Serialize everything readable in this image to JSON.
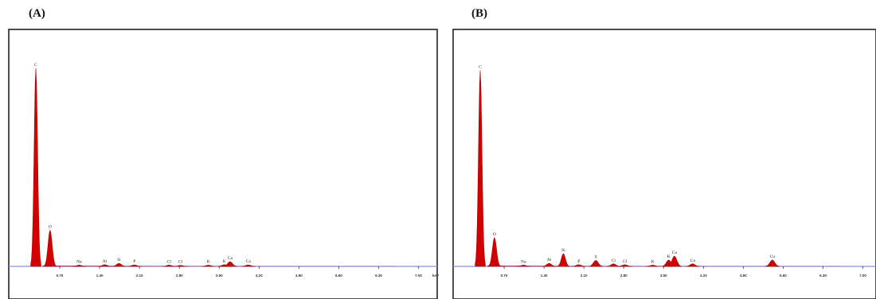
{
  "chart_data": [
    {
      "type": "area",
      "panel_label": "(A)",
      "x_unit": "keV",
      "x_ticks": [
        0.7,
        1.4,
        2.1,
        2.8,
        3.5,
        4.2,
        4.9,
        5.6,
        6.3,
        7.0
      ],
      "x_tick_labels": [
        "0.70",
        "1.40",
        "2.10",
        "2.80",
        "3.50",
        "4.20",
        "4.90",
        "5.60",
        "6.30",
        "7.00"
      ],
      "xlim": [
        0.0,
        7.3
      ],
      "ylim": [
        0,
        1000
      ],
      "peaks": [
        {
          "element": "C",
          "energy": 0.28,
          "intensity": 930
        },
        {
          "element": "O",
          "energy": 0.53,
          "intensity": 170
        },
        {
          "element": "Na",
          "energy": 1.04,
          "intensity": 6
        },
        {
          "element": "Al",
          "energy": 1.49,
          "intensity": 8
        },
        {
          "element": "Si",
          "energy": 1.74,
          "intensity": 14
        },
        {
          "element": "P",
          "energy": 2.01,
          "intensity": 7
        },
        {
          "element": "Cl",
          "energy": 2.62,
          "intensity": 6
        },
        {
          "element": "Cl",
          "energy": 2.82,
          "intensity": 5
        },
        {
          "element": "K",
          "energy": 3.31,
          "intensity": 6
        },
        {
          "element": "K",
          "energy": 3.59,
          "intensity": 8
        },
        {
          "element": "Ca",
          "energy": 3.69,
          "intensity": 22
        },
        {
          "element": "Ca",
          "energy": 4.01,
          "intensity": 7
        }
      ]
    },
    {
      "type": "area",
      "panel_label": "(B)",
      "x_unit": "",
      "x_ticks": [
        0.7,
        1.4,
        2.1,
        2.8,
        3.5,
        4.2,
        4.9,
        5.6,
        6.3,
        7.0
      ],
      "x_tick_labels": [
        "0.70",
        "1.40",
        "2.10",
        "2.80",
        "3.50",
        "4.20",
        "4.90",
        "5.60",
        "6.30",
        "7.00"
      ],
      "xlim": [
        0.0,
        7.3
      ],
      "ylim": [
        0,
        1000
      ],
      "peaks": [
        {
          "element": "C",
          "energy": 0.28,
          "intensity": 920
        },
        {
          "element": "O",
          "energy": 0.53,
          "intensity": 135
        },
        {
          "element": "Na",
          "energy": 1.04,
          "intensity": 6
        },
        {
          "element": "Al",
          "energy": 1.49,
          "intensity": 14
        },
        {
          "element": "Si",
          "energy": 1.74,
          "intensity": 60
        },
        {
          "element": "P",
          "energy": 2.01,
          "intensity": 8
        },
        {
          "element": "S",
          "energy": 2.31,
          "intensity": 28
        },
        {
          "element": "Cl",
          "energy": 2.62,
          "intensity": 12
        },
        {
          "element": "Cl",
          "energy": 2.82,
          "intensity": 8
        },
        {
          "element": "K",
          "energy": 3.31,
          "intensity": 6
        },
        {
          "element": "K",
          "energy": 3.59,
          "intensity": 30
        },
        {
          "element": "Ca",
          "energy": 3.69,
          "intensity": 48
        },
        {
          "element": "Ca",
          "energy": 4.01,
          "intensity": 12
        },
        {
          "element": "Cu",
          "energy": 5.41,
          "intensity": 30
        }
      ]
    }
  ]
}
